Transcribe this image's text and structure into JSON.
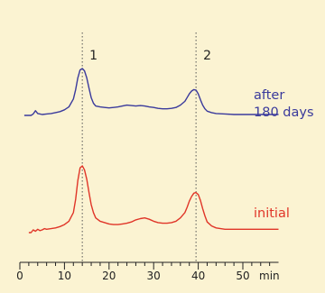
{
  "background_color": "#fbf3d2",
  "chart_data": {
    "type": "line",
    "title": "",
    "xlabel": "",
    "ylabel": "",
    "x_unit": "min",
    "xlim": [
      0,
      58
    ],
    "xticks": [
      0,
      10,
      20,
      30,
      40,
      50
    ],
    "minor_tick_step": 2,
    "grid": false,
    "legend": "inline labels at right end of traces",
    "reference_lines": [
      {
        "x": 14,
        "label": "1"
      },
      {
        "x": 39.5,
        "label": "2"
      }
    ],
    "series": [
      {
        "name_lines": [
          "after",
          "180 days"
        ],
        "color": "#3a3a9c",
        "points": [
          [
            1,
            0.0
          ],
          [
            2.5,
            0.0
          ],
          [
            3,
            0.03
          ],
          [
            3.5,
            0.1
          ],
          [
            4,
            0.04
          ],
          [
            4.5,
            0.03
          ],
          [
            5,
            0.02
          ],
          [
            6,
            0.03
          ],
          [
            7,
            0.04
          ],
          [
            8,
            0.06
          ],
          [
            9,
            0.08
          ],
          [
            10,
            0.12
          ],
          [
            11,
            0.18
          ],
          [
            12,
            0.35
          ],
          [
            12.5,
            0.55
          ],
          [
            13,
            0.8
          ],
          [
            13.5,
            0.97
          ],
          [
            14,
            1.0
          ],
          [
            14.5,
            0.95
          ],
          [
            15,
            0.8
          ],
          [
            15.5,
            0.58
          ],
          [
            16,
            0.38
          ],
          [
            16.5,
            0.26
          ],
          [
            17,
            0.2
          ],
          [
            18,
            0.18
          ],
          [
            19,
            0.17
          ],
          [
            20,
            0.16
          ],
          [
            21,
            0.17
          ],
          [
            22,
            0.18
          ],
          [
            23,
            0.2
          ],
          [
            24,
            0.22
          ],
          [
            25,
            0.21
          ],
          [
            26,
            0.2
          ],
          [
            27,
            0.21
          ],
          [
            28,
            0.2
          ],
          [
            29,
            0.18
          ],
          [
            30,
            0.17
          ],
          [
            31,
            0.15
          ],
          [
            32,
            0.14
          ],
          [
            33,
            0.14
          ],
          [
            34,
            0.15
          ],
          [
            35,
            0.17
          ],
          [
            36,
            0.22
          ],
          [
            37,
            0.3
          ],
          [
            37.5,
            0.38
          ],
          [
            38,
            0.46
          ],
          [
            38.5,
            0.52
          ],
          [
            39,
            0.55
          ],
          [
            39.5,
            0.54
          ],
          [
            40,
            0.46
          ],
          [
            40.5,
            0.33
          ],
          [
            41,
            0.22
          ],
          [
            41.5,
            0.14
          ],
          [
            42,
            0.09
          ],
          [
            43,
            0.06
          ],
          [
            44,
            0.04
          ],
          [
            46,
            0.03
          ],
          [
            48,
            0.02
          ],
          [
            50,
            0.02
          ],
          [
            54,
            0.02
          ],
          [
            58,
            0.02
          ]
        ]
      },
      {
        "name_lines": [
          "initial"
        ],
        "color": "#e03528",
        "points": [
          [
            2,
            0.0
          ],
          [
            2.5,
            0.0
          ],
          [
            3,
            0.04
          ],
          [
            3.5,
            0.02
          ],
          [
            4,
            0.05
          ],
          [
            4.5,
            0.03
          ],
          [
            5,
            0.04
          ],
          [
            5.5,
            0.06
          ],
          [
            6,
            0.05
          ],
          [
            7,
            0.06
          ],
          [
            8,
            0.07
          ],
          [
            9,
            0.09
          ],
          [
            10,
            0.12
          ],
          [
            11,
            0.17
          ],
          [
            12,
            0.3
          ],
          [
            12.5,
            0.5
          ],
          [
            13,
            0.78
          ],
          [
            13.5,
            0.97
          ],
          [
            14,
            1.0
          ],
          [
            14.5,
            0.94
          ],
          [
            15,
            0.8
          ],
          [
            15.5,
            0.6
          ],
          [
            16,
            0.42
          ],
          [
            16.5,
            0.3
          ],
          [
            17,
            0.22
          ],
          [
            18,
            0.17
          ],
          [
            19,
            0.15
          ],
          [
            20,
            0.13
          ],
          [
            21,
            0.12
          ],
          [
            22,
            0.12
          ],
          [
            23,
            0.13
          ],
          [
            24,
            0.14
          ],
          [
            25,
            0.16
          ],
          [
            26,
            0.19
          ],
          [
            27,
            0.21
          ],
          [
            28,
            0.22
          ],
          [
            29,
            0.2
          ],
          [
            30,
            0.17
          ],
          [
            31,
            0.15
          ],
          [
            32,
            0.14
          ],
          [
            33,
            0.14
          ],
          [
            34,
            0.15
          ],
          [
            35,
            0.17
          ],
          [
            36,
            0.22
          ],
          [
            37,
            0.3
          ],
          [
            37.5,
            0.38
          ],
          [
            38,
            0.47
          ],
          [
            38.5,
            0.54
          ],
          [
            39,
            0.59
          ],
          [
            39.5,
            0.6
          ],
          [
            40,
            0.57
          ],
          [
            40.5,
            0.48
          ],
          [
            41,
            0.36
          ],
          [
            41.5,
            0.25
          ],
          [
            42,
            0.16
          ],
          [
            43,
            0.1
          ],
          [
            44,
            0.07
          ],
          [
            46,
            0.05
          ],
          [
            48,
            0.05
          ],
          [
            50,
            0.05
          ],
          [
            54,
            0.05
          ],
          [
            58,
            0.05
          ]
        ]
      }
    ]
  }
}
